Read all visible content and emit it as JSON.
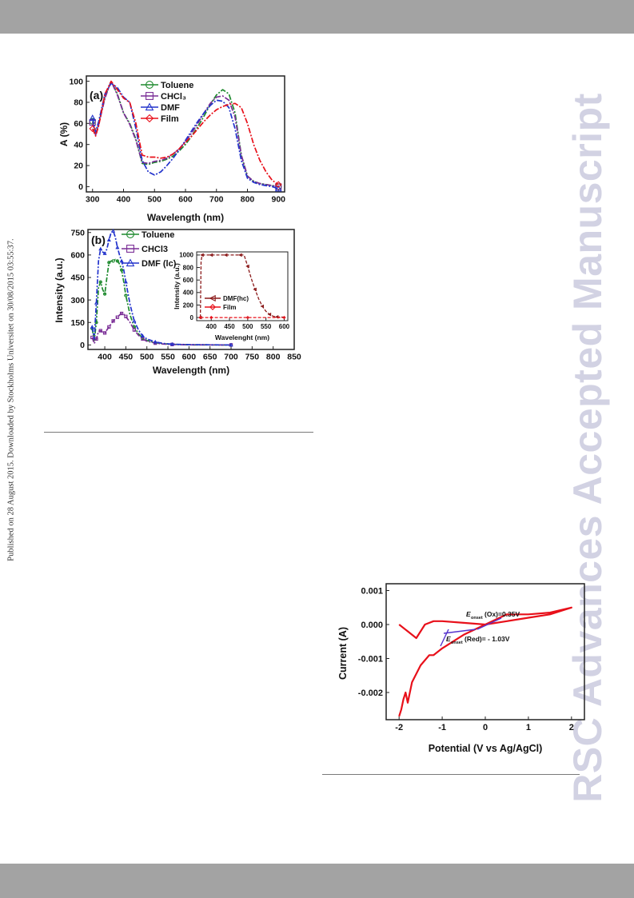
{
  "side_note": "Published on 28 August 2015. Downloaded by Stockholms Universitet on 30/08/2015 03:55:37.",
  "watermark": "RSC Advances Accepted Manuscript",
  "colors": {
    "band": "#a3a3a3",
    "green": "#1e8a2e",
    "purple": "#7a2d96",
    "blue": "#2233cc",
    "red": "#e8101a",
    "darkred": "#8b1a1a",
    "watermark": "#d2d2e3"
  },
  "figure_a": {
    "panel_label": "(a)",
    "xlabel": "Wavelength (nm)",
    "ylabel": "A (%)",
    "legend": [
      {
        "label": "Toluene",
        "marker": "circle",
        "color": "#1e8a2e"
      },
      {
        "label": "CHCl₃",
        "marker": "square",
        "color": "#7a2d96"
      },
      {
        "label": "DMF",
        "marker": "triangle",
        "color": "#2233cc"
      },
      {
        "label": "Film",
        "marker": "diamond",
        "color": "#e8101a"
      }
    ],
    "xticks": [
      "300",
      "400",
      "500",
      "600",
      "700",
      "800",
      "900"
    ],
    "yticks": [
      "0",
      "20",
      "40",
      "60",
      "80",
      "100"
    ]
  },
  "figure_b": {
    "panel_label": "(b)",
    "xlabel": "Wavelength (nm)",
    "ylabel": "Intensity (a.u.)",
    "legend": [
      {
        "label": "Toluene",
        "marker": "circle",
        "color": "#1e8a2e"
      },
      {
        "label": "CHCl3",
        "marker": "square",
        "color": "#7a2d96"
      },
      {
        "label": "DMF (lc)",
        "marker": "triangle",
        "color": "#2233cc"
      }
    ],
    "xticks": [
      "400",
      "450",
      "500",
      "550",
      "600",
      "650",
      "700",
      "750",
      "800",
      "850"
    ],
    "yticks": [
      "0",
      "150",
      "300",
      "450",
      "600",
      "750"
    ],
    "inset": {
      "xlabel": "Wavelenght (nm)",
      "ylabel": "Intensity (a.u.)",
      "xticks": [
        "400",
        "450",
        "500",
        "550",
        "600"
      ],
      "yticks": [
        "0",
        "200",
        "400",
        "600",
        "800",
        "1000"
      ],
      "legend": [
        {
          "label": "DMF(hc)",
          "marker": "triangle-left",
          "color": "#8b1a1a"
        },
        {
          "label": "Film",
          "marker": "diamond",
          "color": "#e8101a"
        }
      ]
    }
  },
  "figure_cv": {
    "xlabel": "Potential (V vs Ag/AgCl)",
    "ylabel": "Current (A)",
    "xticks": [
      "-2",
      "-1",
      "0",
      "1",
      "2"
    ],
    "yticks": [
      "0.001",
      "0.000",
      "-0.001",
      "-0.002"
    ],
    "annotation_ox": "E<sub>onset</sub>(Ox)=0.35V",
    "annotation_red": "E<sub>onset</sub>(Red)= - 1.03V",
    "ann_ox_main": "(Ox)=0.35V",
    "ann_red_main": "(Red)= - 1.03V",
    "ann_E": "E",
    "ann_sub": "onset"
  },
  "chart_data": [
    {
      "type": "line",
      "xlabel": "Wavelength (nm)",
      "ylabel": "A (%)",
      "xlim": [
        280,
        920
      ],
      "ylim": [
        -5,
        105
      ],
      "series": [
        {
          "name": "Toluene",
          "x": [
            300,
            310,
            320,
            340,
            360,
            380,
            400,
            420,
            440,
            460,
            480,
            500,
            520,
            540,
            560,
            580,
            600,
            620,
            640,
            660,
            680,
            700,
            720,
            740,
            760,
            780,
            800,
            820,
            840,
            860,
            880,
            900
          ],
          "y": [
            62,
            50,
            60,
            85,
            100,
            88,
            70,
            60,
            45,
            22,
            21,
            23,
            24,
            26,
            29,
            34,
            40,
            48,
            57,
            67,
            78,
            87,
            92,
            88,
            70,
            30,
            10,
            5,
            3,
            2,
            1,
            0
          ]
        },
        {
          "name": "CHCl₃",
          "x": [
            300,
            310,
            320,
            340,
            360,
            380,
            400,
            420,
            440,
            460,
            480,
            500,
            520,
            540,
            560,
            580,
            600,
            620,
            640,
            660,
            680,
            700,
            720,
            740,
            760,
            780,
            800,
            820,
            840,
            860,
            880,
            900
          ],
          "y": [
            61,
            49,
            59,
            84,
            100,
            87,
            70,
            59,
            44,
            23,
            22,
            24,
            25,
            27,
            31,
            36,
            43,
            51,
            60,
            70,
            79,
            85,
            86,
            82,
            66,
            30,
            10,
            5,
            3,
            2,
            1,
            0
          ]
        },
        {
          "name": "DMF",
          "x": [
            300,
            310,
            320,
            340,
            360,
            380,
            400,
            420,
            440,
            460,
            480,
            500,
            520,
            540,
            560,
            580,
            600,
            620,
            640,
            660,
            680,
            700,
            720,
            740,
            760,
            780,
            800,
            820,
            840,
            860,
            880,
            900
          ],
          "y": [
            65,
            52,
            62,
            88,
            98,
            94,
            85,
            80,
            55,
            25,
            14,
            11,
            14,
            20,
            27,
            35,
            44,
            53,
            62,
            70,
            77,
            82,
            81,
            75,
            55,
            25,
            8,
            4,
            2,
            1,
            0,
            -2
          ]
        },
        {
          "name": "Film",
          "x": [
            300,
            310,
            320,
            340,
            360,
            380,
            400,
            420,
            440,
            460,
            480,
            500,
            520,
            540,
            560,
            580,
            600,
            620,
            640,
            660,
            680,
            700,
            720,
            740,
            760,
            780,
            800,
            820,
            840,
            860,
            880,
            900
          ],
          "y": [
            55,
            48,
            58,
            88,
            100,
            92,
            84,
            80,
            60,
            30,
            28,
            28,
            27,
            28,
            31,
            36,
            42,
            48,
            55,
            62,
            68,
            73,
            76,
            78,
            79,
            75,
            60,
            40,
            25,
            14,
            6,
            2
          ]
        }
      ]
    },
    {
      "type": "line",
      "xlabel": "Wavelength (nm)",
      "ylabel": "Intensity (a.u.)",
      "xlim": [
        360,
        850
      ],
      "ylim": [
        -30,
        770
      ],
      "series": [
        {
          "name": "Toluene",
          "x": [
            370,
            375,
            380,
            385,
            390,
            395,
            400,
            405,
            410,
            415,
            420,
            425,
            430,
            435,
            440,
            445,
            450,
            460,
            470,
            480,
            490,
            500,
            520,
            540,
            560,
            600,
            700
          ],
          "y": [
            110,
            30,
            150,
            380,
            420,
            370,
            340,
            450,
            550,
            560,
            560,
            570,
            560,
            540,
            500,
            420,
            330,
            200,
            120,
            75,
            45,
            30,
            15,
            8,
            4,
            1,
            0
          ]
        },
        {
          "name": "CHCl3",
          "x": [
            370,
            375,
            380,
            385,
            390,
            395,
            400,
            405,
            410,
            415,
            420,
            425,
            430,
            435,
            440,
            445,
            450,
            460,
            470,
            480,
            490,
            500,
            520,
            540,
            560,
            600,
            700
          ],
          "y": [
            50,
            10,
            40,
            90,
            95,
            85,
            80,
            100,
            120,
            140,
            160,
            175,
            185,
            200,
            210,
            205,
            190,
            150,
            100,
            65,
            40,
            25,
            12,
            6,
            3,
            1,
            0
          ]
        },
        {
          "name": "DMF (lc)",
          "x": [
            370,
            375,
            380,
            385,
            390,
            395,
            400,
            405,
            410,
            415,
            420,
            425,
            430,
            435,
            440,
            445,
            450,
            460,
            470,
            480,
            490,
            500,
            520,
            540,
            560,
            600,
            700
          ],
          "y": [
            120,
            40,
            280,
            560,
            640,
            620,
            610,
            640,
            700,
            750,
            760,
            720,
            650,
            600,
            560,
            500,
            420,
            270,
            160,
            100,
            60,
            40,
            20,
            10,
            5,
            2,
            0
          ]
        }
      ]
    },
    {
      "type": "line",
      "xlabel": "Wavelenght (nm)",
      "ylabel": "Intensity (a.u.)",
      "xlim": [
        360,
        610
      ],
      "ylim": [
        -50,
        1050
      ],
      "series": [
        {
          "name": "DMF(hc)",
          "x": [
            370,
            372,
            375,
            380,
            400,
            420,
            440,
            460,
            480,
            490,
            500,
            510,
            520,
            530,
            540,
            550,
            560,
            570,
            580,
            600
          ],
          "y": [
            0,
            900,
            1000,
            1000,
            1000,
            1000,
            1000,
            1000,
            1000,
            1000,
            820,
            620,
            450,
            300,
            180,
            100,
            50,
            20,
            10,
            5
          ]
        },
        {
          "name": "Film",
          "x": [
            370,
            380,
            400,
            450,
            500,
            550,
            600
          ],
          "y": [
            0,
            0,
            0,
            0,
            0,
            0,
            0
          ]
        }
      ]
    },
    {
      "type": "line",
      "xlabel": "Potential (V vs Ag/AgCl)",
      "ylabel": "Current (A)",
      "xlim": [
        -2.3,
        2.3
      ],
      "ylim": [
        -0.0028,
        0.0012
      ],
      "series": [
        {
          "name": "",
          "x": [
            -2.0,
            -1.8,
            -1.6,
            -1.4,
            -1.2,
            -1.0,
            -0.5,
            0.0,
            0.5,
            1.0,
            1.5,
            2.0,
            1.5,
            1.0,
            0.5,
            0.0,
            -0.5,
            -1.0,
            -1.2,
            -1.3,
            -1.5,
            -1.7,
            -1.8,
            -1.85,
            -1.9,
            -1.95,
            -2.0
          ],
          "y": [
            0.0,
            -0.0002,
            -0.0004,
            0.0,
            0.0001,
            0.0001,
            5e-05,
            0.0,
            0.0003,
            0.0003,
            0.00035,
            0.0005,
            0.0003,
            0.0002,
            0.0001,
            0.0,
            -0.0003,
            -0.0007,
            -0.0009,
            -0.0009,
            -0.0012,
            -0.0017,
            -0.0023,
            -0.002,
            -0.0022,
            -0.0025,
            -0.0027
          ]
        }
      ]
    }
  ]
}
